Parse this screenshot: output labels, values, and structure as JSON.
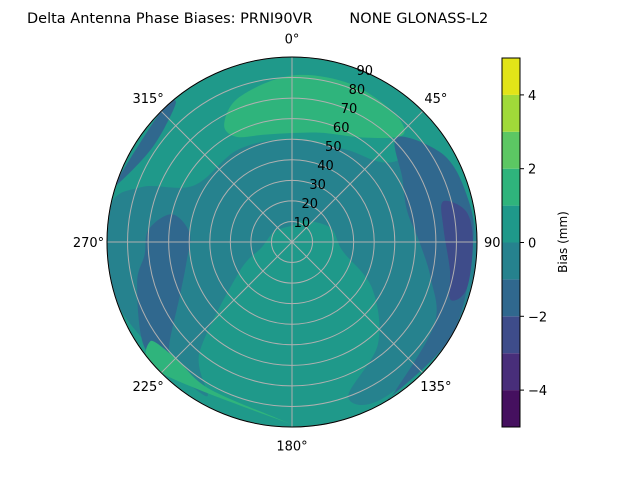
{
  "chart_data": {
    "type": "polar-contour",
    "title": "Delta Antenna Phase Biases: PRNI90VR        NONE GLONASS-L2",
    "theta_tick_labels": [
      "0°",
      "45°",
      "90°",
      "135°",
      "180°",
      "225°",
      "270°",
      "315°"
    ],
    "theta_ticks": [
      0,
      45,
      90,
      135,
      180,
      225,
      270,
      315
    ],
    "theta_direction": "clockwise",
    "theta_zero": "north",
    "r_tick_labels": [
      "10",
      "20",
      "30",
      "40",
      "50",
      "60",
      "70",
      "80",
      "90"
    ],
    "r_ticks": [
      10,
      20,
      30,
      40,
      50,
      60,
      70,
      80,
      90
    ],
    "rlim": [
      0,
      90
    ],
    "grid": true,
    "colorbar": {
      "label": "Bias (mm)",
      "range": [
        -5,
        5
      ],
      "levels": [
        -5,
        -4,
        -3,
        -2,
        -1,
        0,
        1,
        2,
        3,
        4,
        5
      ],
      "tick_values": [
        -4,
        -2,
        0,
        2,
        4
      ],
      "tick_labels": [
        "−4",
        "−2",
        "0",
        "2",
        "4"
      ],
      "colors": [
        "#45105f",
        "#482e7a",
        "#3e4c8a",
        "#30688e",
        "#26828e",
        "#1f998a",
        "#2fb47c",
        "#5cc763",
        "#a0da39",
        "#e2e418"
      ]
    },
    "background_level": 0.5,
    "regions": [
      {
        "level": -0.5,
        "points": [
          [
            -60,
            55
          ],
          [
            -30,
            52
          ],
          [
            0,
            50
          ],
          [
            30,
            52
          ],
          [
            50,
            60
          ],
          [
            60,
            85
          ],
          [
            90,
            90
          ],
          [
            120,
            90
          ],
          [
            150,
            88
          ],
          [
            160,
            80
          ],
          [
            140,
            65
          ],
          [
            120,
            45
          ],
          [
            100,
            25
          ],
          [
            70,
            20
          ],
          [
            30,
            12
          ],
          [
            0,
            8
          ],
          [
            -60,
            10
          ],
          [
            -100,
            15
          ],
          [
            -120,
            30
          ],
          [
            -140,
            70
          ],
          [
            -150,
            86
          ],
          [
            -110,
            90
          ],
          [
            -80,
            90
          ],
          [
            -70,
            78
          ]
        ]
      },
      {
        "level": 1.5,
        "points": [
          [
            -30,
            66
          ],
          [
            -20,
            75
          ],
          [
            0,
            81
          ],
          [
            20,
            82
          ],
          [
            38,
            80
          ],
          [
            46,
            75
          ],
          [
            35,
            62
          ],
          [
            15,
            55
          ],
          [
            0,
            53
          ],
          [
            -15,
            54
          ],
          [
            -28,
            58
          ]
        ]
      },
      {
        "level": -1.5,
        "points": [
          [
            45,
            72
          ],
          [
            60,
            62
          ],
          [
            75,
            58
          ],
          [
            90,
            62
          ],
          [
            105,
            70
          ],
          [
            120,
            80
          ],
          [
            145,
            88
          ],
          [
            150,
            90
          ],
          [
            120,
            90
          ],
          [
            90,
            88
          ],
          [
            75,
            88
          ],
          [
            60,
            85
          ]
        ]
      },
      {
        "level": -1.5,
        "points": [
          [
            -77,
            60
          ],
          [
            -85,
            50
          ],
          [
            -100,
            52
          ],
          [
            -115,
            60
          ],
          [
            -130,
            78
          ],
          [
            -136,
            85
          ],
          [
            -125,
            88
          ],
          [
            -105,
            78
          ],
          [
            -95,
            72
          ],
          [
            -85,
            70
          ]
        ]
      },
      {
        "level": -1.5,
        "points": [
          [
            -70,
            88
          ],
          [
            -55,
            82
          ],
          [
            -40,
            88
          ],
          [
            -45,
            90
          ],
          [
            -70,
            90
          ]
        ]
      },
      {
        "level": -2.5,
        "points": [
          [
            75,
            76
          ],
          [
            85,
            74
          ],
          [
            100,
            78
          ],
          [
            110,
            82
          ],
          [
            105,
            88
          ],
          [
            90,
            88
          ],
          [
            80,
            86
          ]
        ]
      },
      {
        "level": 1.5,
        "points": [
          [
            178,
            90
          ],
          [
            185,
            86
          ],
          [
            210,
            82
          ],
          [
            225,
            80
          ],
          [
            235,
            84
          ],
          [
            225,
            90
          ]
        ]
      }
    ]
  }
}
